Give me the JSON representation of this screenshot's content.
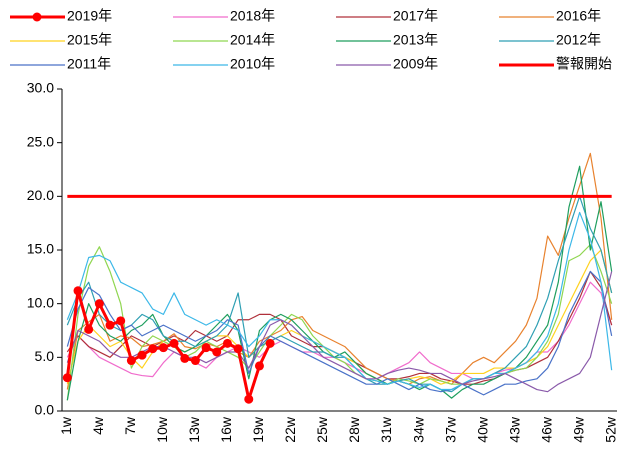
{
  "chart_data": {
    "type": "line",
    "categories": [
      "1w",
      null,
      null,
      "4w",
      null,
      null,
      "7w",
      null,
      null,
      "10w",
      null,
      null,
      "13w",
      null,
      null,
      "16w",
      null,
      null,
      "19w",
      null,
      null,
      "22w",
      null,
      null,
      "25w",
      null,
      null,
      "28w",
      null,
      null,
      "31w",
      null,
      null,
      "34w",
      null,
      null,
      "37w",
      null,
      null,
      "40w",
      null,
      null,
      "43w",
      null,
      null,
      "46w",
      null,
      null,
      "49w",
      null,
      null,
      "52w"
    ],
    "ylim": [
      0,
      30
    ],
    "yticks": [
      {
        "value": 0,
        "label": "0.0"
      },
      {
        "value": 5,
        "label": "5.0"
      },
      {
        "value": 10,
        "label": "10.0"
      },
      {
        "value": 15,
        "label": "15.0"
      },
      {
        "value": 20,
        "label": "20.0"
      },
      {
        "value": 25,
        "label": "25.0"
      },
      {
        "value": 30,
        "label": "30.0"
      }
    ],
    "grid": false,
    "legend": "top",
    "series": [
      {
        "name": "2019年",
        "color": "#ff0000",
        "markers": true,
        "values": [
          3.1,
          11.2,
          7.6,
          10.0,
          8.0,
          8.4,
          4.7,
          5.2,
          5.8,
          5.9,
          6.3,
          4.9,
          4.7,
          5.9,
          5.5,
          6.3,
          5.8,
          1.1,
          4.2,
          6.3,
          null,
          null,
          null,
          null,
          null,
          null,
          null,
          null,
          null,
          null,
          null,
          null,
          null,
          null,
          null,
          null,
          null,
          null,
          null,
          null,
          null,
          null,
          null,
          null,
          null,
          null,
          null,
          null,
          null,
          null,
          null,
          null
        ]
      },
      {
        "name": "2018年",
        "color": "#f06ccc",
        "values": [
          5.0,
          7.0,
          6.0,
          5.0,
          4.5,
          4.0,
          3.5,
          3.3,
          3.2,
          4.5,
          5.5,
          5.0,
          4.5,
          4.0,
          5.0,
          5.5,
          6.0,
          5.5,
          5.0,
          6.0,
          6.5,
          6.0,
          5.5,
          5.5,
          5.0,
          5.0,
          4.5,
          4.0,
          3.5,
          3.0,
          3.5,
          4.0,
          4.5,
          5.5,
          4.5,
          4.0,
          3.5,
          3.5,
          3.0,
          3.0,
          3.5,
          3.8,
          4.0,
          4.5,
          5.5,
          5.5,
          6.5,
          8.0,
          10.0,
          12.0,
          11.0,
          8.0
        ]
      },
      {
        "name": "2017年",
        "color": "#b0303a",
        "values": [
          5.5,
          7.0,
          6.0,
          5.5,
          5.0,
          6.0,
          7.0,
          6.5,
          6.0,
          6.5,
          7.0,
          6.5,
          7.5,
          7.0,
          6.5,
          7.0,
          8.5,
          8.5,
          9.0,
          9.0,
          8.5,
          7.0,
          6.5,
          6.0,
          6.0,
          5.5,
          5.0,
          4.5,
          4.0,
          3.5,
          3.0,
          3.0,
          3.2,
          3.5,
          3.5,
          3.0,
          2.8,
          2.5,
          2.5,
          2.8,
          3.0,
          3.5,
          3.8,
          4.0,
          4.5,
          5.0,
          6.5,
          8.5,
          10.5,
          13.0,
          11.5,
          8.0
        ]
      },
      {
        "name": "2016年",
        "color": "#e8822e",
        "values": [
          2.0,
          7.5,
          8.3,
          9.0,
          6.5,
          7.0,
          6.8,
          6.0,
          6.2,
          6.5,
          7.2,
          6.0,
          5.8,
          6.3,
          6.0,
          6.5,
          5.5,
          5.0,
          6.5,
          7.0,
          7.5,
          8.5,
          8.8,
          7.5,
          7.0,
          6.5,
          6.0,
          5.0,
          4.0,
          3.5,
          3.0,
          2.8,
          2.5,
          3.0,
          3.2,
          2.8,
          2.5,
          3.5,
          4.5,
          5.0,
          4.5,
          5.5,
          6.5,
          8.0,
          10.5,
          16.3,
          14.5,
          18.0,
          21.0,
          24.0,
          18.0,
          8.5
        ]
      },
      {
        "name": "2015年",
        "color": "#ffd21f",
        "values": [
          2.5,
          6.5,
          8.0,
          7.0,
          6.0,
          6.5,
          5.0,
          4.0,
          5.5,
          6.5,
          6.0,
          5.5,
          6.0,
          6.5,
          7.0,
          7.0,
          6.0,
          5.0,
          6.0,
          6.5,
          7.0,
          7.5,
          7.0,
          6.5,
          6.0,
          5.5,
          5.0,
          4.5,
          3.5,
          3.0,
          2.5,
          2.8,
          3.0,
          3.2,
          3.0,
          2.5,
          2.8,
          3.5,
          3.5,
          3.5,
          4.0,
          4.0,
          4.0,
          4.5,
          5.0,
          6.0,
          8.0,
          10.0,
          12.0,
          14.0,
          15.0,
          11.0
        ]
      },
      {
        "name": "2014年",
        "color": "#8fd650",
        "values": [
          1.0,
          9.0,
          13.5,
          15.3,
          13.0,
          10.0,
          4.0,
          6.0,
          7.0,
          6.5,
          6.0,
          5.0,
          5.5,
          6.5,
          6.0,
          5.5,
          5.0,
          4.0,
          5.5,
          7.0,
          8.0,
          9.0,
          8.5,
          7.0,
          6.0,
          5.0,
          4.5,
          3.5,
          3.0,
          2.8,
          2.5,
          3.0,
          2.8,
          2.5,
          3.0,
          2.8,
          2.5,
          2.5,
          3.0,
          3.0,
          3.5,
          3.5,
          3.8,
          4.0,
          5.0,
          6.5,
          9.0,
          14.0,
          14.5,
          15.5,
          13.0,
          10.0
        ]
      },
      {
        "name": "2013年",
        "color": "#1e9e5e",
        "values": [
          1.0,
          6.5,
          10.0,
          8.0,
          7.0,
          6.5,
          7.5,
          8.0,
          9.0,
          7.0,
          6.0,
          5.5,
          6.0,
          7.0,
          8.0,
          9.0,
          7.5,
          3.0,
          7.5,
          8.5,
          9.0,
          8.5,
          7.5,
          6.5,
          5.5,
          5.0,
          5.5,
          4.5,
          3.5,
          3.0,
          2.5,
          2.8,
          2.5,
          2.0,
          2.5,
          2.0,
          1.2,
          2.0,
          2.5,
          2.5,
          3.0,
          3.5,
          4.0,
          5.0,
          6.5,
          8.0,
          12.0,
          19.0,
          22.8,
          15.0,
          19.5,
          13.0
        ]
      },
      {
        "name": "2012年",
        "color": "#2e9fb3",
        "values": [
          8.0,
          10.5,
          12.0,
          9.0,
          8.0,
          7.5,
          8.0,
          9.0,
          8.5,
          7.0,
          6.5,
          6.5,
          6.0,
          6.5,
          7.0,
          8.0,
          11.0,
          5.0,
          6.0,
          6.5,
          7.0,
          6.5,
          6.0,
          5.5,
          5.5,
          5.0,
          5.0,
          4.0,
          3.0,
          2.5,
          2.5,
          2.8,
          3.0,
          2.5,
          2.5,
          2.0,
          1.8,
          2.5,
          3.0,
          3.0,
          3.5,
          4.0,
          5.0,
          6.0,
          8.0,
          10.5,
          14.0,
          17.0,
          20.0,
          17.0,
          15.0,
          11.0
        ]
      },
      {
        "name": "2011年",
        "color": "#4a72c8",
        "values": [
          6.0,
          9.5,
          11.5,
          10.8,
          9.0,
          7.5,
          8.0,
          7.0,
          7.5,
          8.0,
          7.5,
          7.0,
          6.5,
          7.0,
          7.5,
          8.5,
          8.0,
          3.5,
          6.0,
          7.0,
          6.5,
          6.0,
          5.5,
          5.0,
          4.5,
          4.0,
          3.5,
          3.0,
          2.5,
          2.5,
          3.0,
          2.5,
          2.0,
          2.5,
          2.0,
          1.8,
          2.0,
          2.5,
          2.0,
          1.5,
          2.0,
          2.5,
          2.5,
          2.8,
          3.0,
          4.0,
          6.0,
          9.0,
          11.0,
          13.0,
          12.0,
          7.0
        ]
      },
      {
        "name": "2010年",
        "color": "#3cb8e8",
        "values": [
          8.5,
          11.0,
          14.3,
          14.5,
          14.0,
          12.0,
          11.5,
          11.0,
          9.5,
          9.0,
          11.0,
          9.0,
          8.5,
          8.0,
          8.5,
          8.0,
          7.5,
          6.0,
          7.0,
          8.5,
          8.5,
          8.0,
          7.0,
          6.5,
          6.0,
          5.5,
          5.0,
          4.0,
          3.0,
          2.8,
          2.5,
          2.8,
          2.5,
          2.2,
          2.5,
          2.0,
          2.0,
          2.5,
          3.0,
          3.0,
          3.5,
          3.5,
          4.0,
          4.5,
          5.5,
          7.0,
          10.0,
          15.0,
          18.5,
          16.0,
          12.0,
          3.8
        ]
      },
      {
        "name": "2009年",
        "color": "#8a5aaa",
        "values": [
          4.5,
          7.5,
          7.0,
          6.5,
          5.5,
          5.0,
          5.0,
          5.5,
          6.0,
          6.0,
          5.5,
          5.0,
          5.0,
          4.5,
          5.0,
          5.5,
          5.5,
          4.0,
          6.0,
          8.0,
          8.5,
          8.0,
          7.0,
          6.0,
          5.0,
          4.5,
          4.0,
          3.5,
          3.0,
          3.0,
          3.5,
          3.8,
          4.0,
          3.8,
          3.5,
          3.5,
          3.0,
          2.5,
          2.8,
          3.0,
          3.2,
          3.5,
          3.0,
          2.5,
          2.0,
          1.8,
          2.5,
          3.0,
          3.5,
          5.0,
          9.0,
          13.0
        ]
      },
      {
        "name": "警報開始",
        "color": "#ff0000",
        "thick": true,
        "values": [
          20,
          20,
          20,
          20,
          20,
          20,
          20,
          20,
          20,
          20,
          20,
          20,
          20,
          20,
          20,
          20,
          20,
          20,
          20,
          20,
          20,
          20,
          20,
          20,
          20,
          20,
          20,
          20,
          20,
          20,
          20,
          20,
          20,
          20,
          20,
          20,
          20,
          20,
          20,
          20,
          20,
          20,
          20,
          20,
          20,
          20,
          20,
          20,
          20,
          20,
          20,
          20
        ]
      }
    ]
  }
}
